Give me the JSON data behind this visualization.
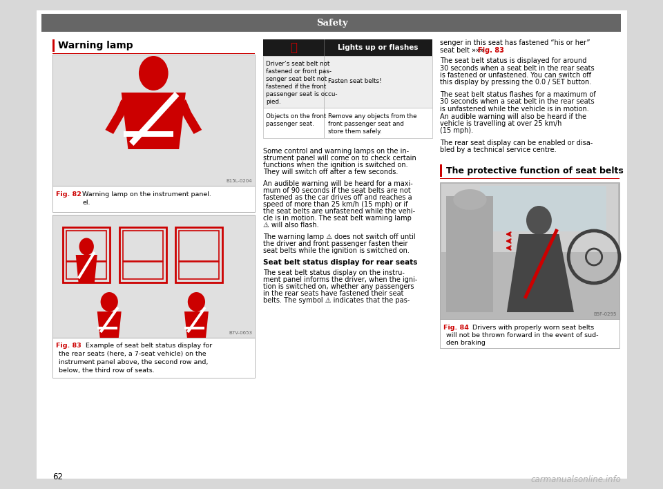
{
  "page_bg": "#d8d8d8",
  "content_bg": "#ffffff",
  "header_bg": "#666666",
  "header_text": "Safety",
  "header_text_color": "#ffffff",
  "page_number": "62",
  "left_section_title": "Warning lamp",
  "fig82_label": "Fig. 82",
  "fig82_caption_rest": "Warning lamp on the instrument panel.",
  "fig82_img_bg": "#e0e0e0",
  "fig82_ref": "B15L-0204",
  "fig83_label": "Fig. 83",
  "fig83_caption_line1": "Example of seat belt status display for",
  "fig83_caption_line2": "the rear seats (here, a 7-seat vehicle) on the",
  "fig83_caption_line3": "instrument panel above, the second row and,",
  "fig83_caption_line4": "below, the third row of seats.",
  "fig83_img_bg": "#e0e0e0",
  "fig83_ref": "B7V-0653",
  "table_header_bg": "#1a1a1a",
  "table_col2_header": "Lights up or flashes",
  "table_row1_col1_lines": [
    "Driver’s seat belt not",
    "fastened or front pas-",
    "senger seat belt not",
    "fastened if the front",
    "passenger seat is occu-",
    "pied."
  ],
  "table_row1_col2": "Fasten seat belts!",
  "table_row2_col1_lines": [
    "Objects on the front",
    "passenger seat."
  ],
  "table_row2_col2_lines": [
    "Remove any objects from the",
    "front passenger seat and",
    "store them safely."
  ],
  "mid_para1_lines": [
    "Some control and warning lamps on the in-",
    "strument panel will come on to check certain",
    "functions when the ignition is switched on.",
    "They will switch off after a few seconds."
  ],
  "mid_para2_lines": [
    "An audible warning will be heard for a maxi-",
    "mum of 90 seconds if the seat belts are not",
    "fastened as the car drives off and reaches a",
    "speed of more than 25 km/h (15 mph) or if",
    "the seat belts are unfastened while the vehi-",
    "cle is in motion. The seat belt warning lamp",
    "⚠ will also flash."
  ],
  "mid_para3_lines": [
    "The warning lamp ⚠ does not switch off until",
    "the driver and front passenger fasten their",
    "seat belts while the ignition is switched on."
  ],
  "seat_belt_heading": "Seat belt status display for rear seats",
  "mid_para4_lines": [
    "The seat belt status display on the instru-",
    "ment panel informs the driver, when the igni-",
    "tion is switched on, whether any passengers",
    "in the rear seats have fastened their seat",
    "belts. The symbol ⚠ indicates that the pas-"
  ],
  "right_intro_lines": [
    "senger in this seat has fastened “his or her”",
    "seat belt »»» Fig. 83."
  ],
  "right_fig83_ref_color": "#cc0000",
  "right_para1_lines": [
    "The seat belt status is displayed for around",
    "30 seconds when a seat belt in the rear seats",
    "is fastened or unfastened. You can switch off",
    "this display by pressing the 0.0 / SET button."
  ],
  "right_para2_lines": [
    "The seat belt status flashes for a maximum of",
    "30 seconds when a seat belt in the rear seats",
    "is unfastened while the vehicle is in motion.",
    "An audible warning will also be heard if the",
    "vehicle is travelling at over 25 km/h",
    "(15 mph)."
  ],
  "right_para3_lines": [
    "The rear seat display can be enabled or disa-",
    "bled by a technical service centre."
  ],
  "right_section_title": "The protective function of seat belts",
  "fig84_label": "Fig. 84",
  "fig84_caption_line1": "Drivers with properly worn seat belts",
  "fig84_caption_line2": "will not be thrown forward in the event of sud-",
  "fig84_caption_line3": "den braking",
  "fig84_img_bg": "#b8b8b8",
  "fig84_ref": "B5F-0295",
  "accent_color": "#cc0000",
  "separator_color": "#cc0000",
  "watermark": "carmanualsonline.info",
  "body_font_size": 7.5,
  "small_font_size": 6.8,
  "caption_font_size": 6.8,
  "title_font_size": 10.0,
  "section_font_size": 9.0,
  "header_font_size": 9.5
}
